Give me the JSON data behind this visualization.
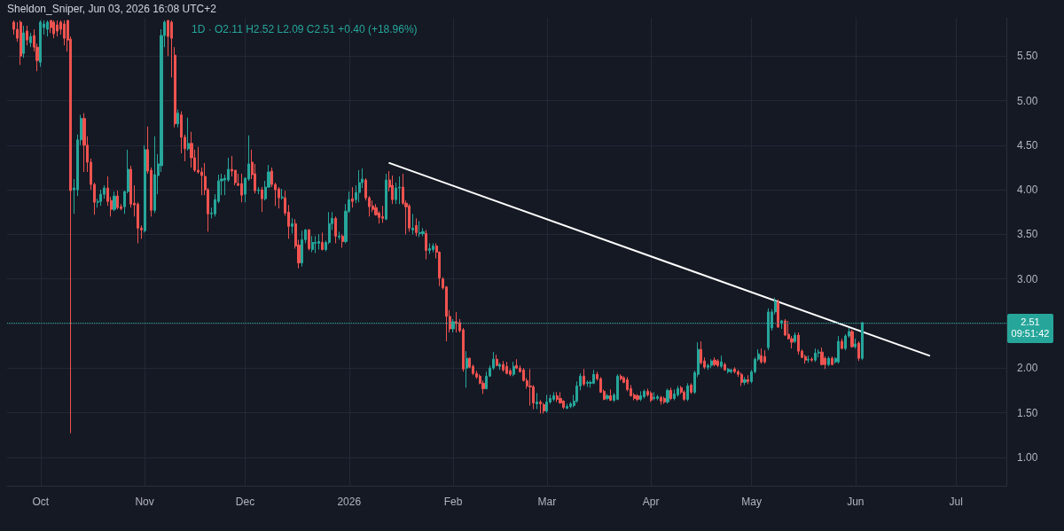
{
  "chart_data": {
    "type": "candlestick",
    "title": "1D · O2.11 H2.52 L2.09 C2.51 +0.40 (+18.96%)",
    "annotations": [
      "Sheldon_Sniper, Jun 03, 2026 16:08 UTC+2",
      "09:51:42"
    ],
    "x": [
      "2025-09-23",
      "2025-09-24",
      "2025-09-25",
      "2025-09-26",
      "2025-09-27",
      "2025-09-28",
      "2025-09-29",
      "2025-09-30",
      "2025-10-01",
      "2025-10-02",
      "2025-10-03",
      "2025-10-04",
      "2025-10-05",
      "2025-10-06",
      "2025-10-07",
      "2025-10-08",
      "2025-10-09",
      "2025-10-10",
      "2025-10-11",
      "2025-10-12",
      "2025-10-13",
      "2025-10-14",
      "2025-10-15",
      "2025-10-16",
      "2025-10-17",
      "2025-10-18",
      "2025-10-19",
      "2025-10-20",
      "2025-10-21",
      "2025-10-22",
      "2025-10-23",
      "2025-10-24",
      "2025-10-25",
      "2025-10-26",
      "2025-10-27",
      "2025-10-28",
      "2025-10-29",
      "2025-10-30",
      "2025-10-31",
      "2025-11-01",
      "2025-11-02",
      "2025-11-03",
      "2025-11-04",
      "2025-11-05",
      "2025-11-06",
      "2025-11-07",
      "2025-11-08",
      "2025-11-09",
      "2025-11-10",
      "2025-11-11",
      "2025-11-12",
      "2025-11-13",
      "2025-11-14",
      "2025-11-15",
      "2025-11-16",
      "2025-11-17",
      "2025-11-18",
      "2025-11-19",
      "2025-11-20",
      "2025-11-21",
      "2025-11-22",
      "2025-11-23",
      "2025-11-24",
      "2025-11-25",
      "2025-11-26",
      "2025-11-27",
      "2025-11-28",
      "2025-11-29",
      "2025-11-30",
      "2025-12-01",
      "2025-12-02",
      "2025-12-03",
      "2025-12-04",
      "2025-12-05",
      "2025-12-06",
      "2025-12-07",
      "2025-12-08",
      "2025-12-09",
      "2025-12-10",
      "2025-12-11",
      "2025-12-12",
      "2025-12-13",
      "2025-12-14",
      "2025-12-15",
      "2025-12-16",
      "2025-12-17",
      "2025-12-18",
      "2025-12-19",
      "2025-12-20",
      "2025-12-21",
      "2025-12-22",
      "2025-12-23",
      "2025-12-24",
      "2025-12-25",
      "2025-12-26",
      "2025-12-27",
      "2025-12-28",
      "2025-12-29",
      "2025-12-30",
      "2025-12-31",
      "2026-01-01",
      "2026-01-02",
      "2026-01-03",
      "2026-01-04",
      "2026-01-05",
      "2026-01-06",
      "2026-01-07",
      "2026-01-08",
      "2026-01-09",
      "2026-01-10",
      "2026-01-11",
      "2026-01-12",
      "2026-01-13",
      "2026-01-14",
      "2026-01-15",
      "2026-01-16",
      "2026-01-17",
      "2026-01-18",
      "2026-01-19",
      "2026-01-20",
      "2026-01-21",
      "2026-01-22",
      "2026-01-23",
      "2026-01-24",
      "2026-01-25",
      "2026-01-26",
      "2026-01-27",
      "2026-01-28",
      "2026-01-29",
      "2026-01-30",
      "2026-01-31",
      "2026-02-01",
      "2026-02-02",
      "2026-02-03",
      "2026-02-04",
      "2026-02-05",
      "2026-02-06",
      "2026-02-07",
      "2026-02-08",
      "2026-02-09",
      "2026-02-10",
      "2026-02-11",
      "2026-02-12",
      "2026-02-13",
      "2026-02-14",
      "2026-02-15",
      "2026-02-16",
      "2026-02-17",
      "2026-02-18",
      "2026-02-19",
      "2026-02-20",
      "2026-02-21",
      "2026-02-22",
      "2026-02-23",
      "2026-02-24",
      "2026-02-25",
      "2026-02-26",
      "2026-02-27",
      "2026-02-28",
      "2026-03-01",
      "2026-03-02",
      "2026-03-03",
      "2026-03-04",
      "2026-03-05",
      "2026-03-06",
      "2026-03-07",
      "2026-03-08",
      "2026-03-09",
      "2026-03-10",
      "2026-03-11",
      "2026-03-12",
      "2026-03-13",
      "2026-03-14",
      "2026-03-15",
      "2026-03-16",
      "2026-03-17",
      "2026-03-18",
      "2026-03-19",
      "2026-03-20",
      "2026-03-21",
      "2026-03-22",
      "2026-03-23",
      "2026-03-24",
      "2026-03-25",
      "2026-03-26",
      "2026-03-27",
      "2026-03-28",
      "2026-03-29",
      "2026-03-30",
      "2026-03-31",
      "2026-04-01",
      "2026-04-02",
      "2026-04-03",
      "2026-04-04",
      "2026-04-05",
      "2026-04-06",
      "2026-04-07",
      "2026-04-08",
      "2026-04-09",
      "2026-04-10",
      "2026-04-11",
      "2026-04-12",
      "2026-04-13",
      "2026-04-14",
      "2026-04-15",
      "2026-04-16",
      "2026-04-17",
      "2026-04-18",
      "2026-04-19",
      "2026-04-20",
      "2026-04-21",
      "2026-04-22",
      "2026-04-23",
      "2026-04-24",
      "2026-04-25",
      "2026-04-26",
      "2026-04-27",
      "2026-04-28",
      "2026-04-29",
      "2026-04-30",
      "2026-05-01",
      "2026-05-02",
      "2026-05-03",
      "2026-05-04",
      "2026-05-05",
      "2026-05-06",
      "2026-05-07",
      "2026-05-08",
      "2026-05-09",
      "2026-05-10",
      "2026-05-11",
      "2026-05-12",
      "2026-05-13",
      "2026-05-14",
      "2026-05-15",
      "2026-05-16",
      "2026-05-17",
      "2026-05-18",
      "2026-05-19",
      "2026-05-20",
      "2026-05-21",
      "2026-05-22",
      "2026-05-23",
      "2026-05-24",
      "2026-05-25",
      "2026-05-26",
      "2026-05-27",
      "2026-05-28",
      "2026-05-29",
      "2026-05-30",
      "2026-05-31",
      "2026-06-01",
      "2026-06-02",
      "2026-06-03"
    ],
    "ohlc": [
      [
        5.88,
        5.9,
        5.74,
        5.8
      ],
      [
        5.8,
        5.88,
        5.66,
        5.7
      ],
      [
        5.88,
        5.9,
        5.4,
        5.5
      ],
      [
        5.53,
        5.84,
        5.48,
        5.76
      ],
      [
        5.78,
        5.84,
        5.62,
        5.68
      ],
      [
        5.65,
        5.76,
        5.6,
        5.72
      ],
      [
        5.73,
        5.8,
        5.55,
        5.6
      ],
      [
        5.6,
        5.64,
        5.33,
        5.45
      ],
      [
        5.43,
        5.9,
        5.38,
        5.88
      ],
      [
        5.82,
        5.9,
        5.74,
        5.86
      ],
      [
        5.8,
        5.9,
        5.72,
        5.88
      ],
      [
        5.9,
        5.9,
        5.76,
        5.82
      ],
      [
        5.88,
        5.9,
        5.7,
        5.75
      ],
      [
        5.85,
        5.9,
        5.72,
        5.78
      ],
      [
        5.88,
        5.9,
        5.74,
        5.8
      ],
      [
        5.86,
        5.9,
        5.62,
        5.7
      ],
      [
        5.9,
        5.9,
        5.55,
        5.68
      ],
      [
        5.69,
        5.72,
        1.27,
        3.99
      ],
      [
        4.0,
        4.12,
        3.73,
        4.02
      ],
      [
        4.0,
        4.62,
        3.93,
        4.56
      ],
      [
        4.56,
        4.84,
        4.5,
        4.8
      ],
      [
        4.8,
        4.86,
        4.2,
        4.5
      ],
      [
        4.5,
        4.6,
        4.2,
        4.31
      ],
      [
        4.31,
        4.35,
        4.0,
        4.06
      ],
      [
        4.06,
        4.08,
        3.72,
        3.86
      ],
      [
        3.86,
        3.9,
        3.8,
        3.87
      ],
      [
        3.87,
        4.0,
        3.82,
        3.95
      ],
      [
        3.95,
        4.05,
        3.9,
        4.02
      ],
      [
        4.02,
        4.15,
        3.82,
        3.87
      ],
      [
        3.88,
        3.92,
        3.7,
        3.78
      ],
      [
        3.78,
        3.98,
        3.76,
        3.93
      ],
      [
        3.93,
        3.99,
        3.78,
        3.8
      ],
      [
        3.81,
        3.84,
        3.77,
        3.79
      ],
      [
        3.81,
        3.99,
        3.73,
        3.98
      ],
      [
        3.98,
        4.45,
        3.96,
        4.23
      ],
      [
        4.23,
        4.27,
        3.8,
        3.84
      ],
      [
        3.85,
        4.05,
        3.7,
        3.83
      ],
      [
        3.84,
        3.86,
        3.4,
        3.57
      ],
      [
        3.57,
        3.6,
        3.45,
        3.55
      ],
      [
        3.54,
        4.5,
        3.52,
        4.45
      ],
      [
        4.45,
        4.71,
        4.18,
        4.21
      ],
      [
        4.22,
        4.25,
        3.7,
        3.77
      ],
      [
        3.77,
        4.6,
        3.74,
        4.17
      ],
      [
        4.16,
        4.4,
        3.95,
        4.29
      ],
      [
        4.27,
        5.8,
        4.2,
        5.73
      ],
      [
        5.73,
        5.9,
        5.6,
        5.88
      ],
      [
        5.9,
        5.9,
        5.5,
        5.72
      ],
      [
        5.88,
        5.9,
        5.26,
        5.7
      ],
      [
        5.51,
        5.6,
        4.7,
        4.74
      ],
      [
        4.74,
        4.9,
        4.7,
        4.86
      ],
      [
        4.84,
        4.88,
        4.41,
        4.59
      ],
      [
        4.59,
        4.62,
        4.32,
        4.46
      ],
      [
        4.46,
        4.81,
        4.44,
        4.52
      ],
      [
        4.52,
        4.65,
        4.25,
        4.36
      ],
      [
        4.36,
        4.45,
        4.2,
        4.22
      ],
      [
        4.22,
        4.48,
        4.18,
        4.2
      ],
      [
        4.2,
        4.25,
        3.94,
        4.16
      ],
      [
        4.15,
        4.3,
        3.94,
        4.0
      ],
      [
        4.0,
        4.02,
        3.53,
        3.73
      ],
      [
        3.73,
        3.8,
        3.68,
        3.74
      ],
      [
        3.73,
        3.95,
        3.7,
        3.89
      ],
      [
        3.87,
        4.17,
        3.85,
        4.1
      ],
      [
        4.1,
        4.18,
        3.94,
        4.12
      ],
      [
        4.11,
        4.17,
        3.94,
        4.13
      ],
      [
        4.11,
        4.36,
        4.09,
        4.23
      ],
      [
        4.23,
        4.38,
        4.15,
        4.21
      ],
      [
        4.22,
        4.22,
        4.05,
        4.08
      ],
      [
        4.07,
        4.18,
        4.04,
        4.05
      ],
      [
        4.07,
        4.18,
        3.86,
        3.94
      ],
      [
        3.95,
        4.14,
        3.86,
        4.13
      ],
      [
        4.12,
        4.61,
        4.1,
        4.29
      ],
      [
        4.31,
        4.45,
        4.12,
        4.17
      ],
      [
        4.18,
        4.29,
        3.96,
        3.99
      ],
      [
        3.99,
        4.03,
        3.95,
        4.0
      ],
      [
        4.0,
        4.03,
        3.75,
        3.9
      ],
      [
        3.9,
        4.1,
        3.88,
        4.03
      ],
      [
        4.03,
        4.28,
        4.02,
        4.2
      ],
      [
        4.21,
        4.25,
        4.03,
        4.06
      ],
      [
        4.06,
        4.08,
        3.82,
        4.0
      ],
      [
        4.01,
        4.03,
        3.79,
        3.91
      ],
      [
        3.91,
        4.01,
        3.89,
        3.92
      ],
      [
        3.91,
        3.99,
        3.71,
        3.74
      ],
      [
        3.75,
        3.83,
        3.45,
        3.59
      ],
      [
        3.59,
        3.68,
        3.51,
        3.62
      ],
      [
        3.62,
        3.67,
        3.34,
        3.37
      ],
      [
        3.38,
        3.44,
        3.12,
        3.18
      ],
      [
        3.18,
        3.54,
        3.14,
        3.44
      ],
      [
        3.44,
        3.56,
        3.4,
        3.55
      ],
      [
        3.55,
        3.56,
        3.32,
        3.34
      ],
      [
        3.33,
        3.48,
        3.3,
        3.41
      ],
      [
        3.4,
        3.48,
        3.29,
        3.41
      ],
      [
        3.4,
        3.5,
        3.33,
        3.42
      ],
      [
        3.41,
        3.52,
        3.32,
        3.33
      ],
      [
        3.33,
        3.43,
        3.31,
        3.41
      ],
      [
        3.41,
        3.75,
        3.39,
        3.62
      ],
      [
        3.62,
        3.75,
        3.55,
        3.68
      ],
      [
        3.68,
        3.7,
        3.4,
        3.48
      ],
      [
        3.47,
        3.53,
        3.44,
        3.48
      ],
      [
        3.48,
        3.5,
        3.35,
        3.42
      ],
      [
        3.42,
        3.84,
        3.4,
        3.76
      ],
      [
        3.76,
        3.98,
        3.74,
        3.89
      ],
      [
        3.9,
        4.03,
        3.8,
        3.87
      ],
      [
        3.89,
        4.05,
        3.85,
        3.97
      ],
      [
        3.97,
        4.22,
        3.86,
        4.08
      ],
      [
        4.08,
        4.24,
        4.02,
        4.12
      ],
      [
        4.11,
        4.13,
        3.88,
        3.91
      ],
      [
        3.91,
        3.93,
        3.7,
        3.81
      ],
      [
        3.82,
        3.88,
        3.75,
        3.78
      ],
      [
        3.8,
        3.84,
        3.71,
        3.72
      ],
      [
        3.74,
        3.76,
        3.62,
        3.69
      ],
      [
        3.7,
        3.82,
        3.63,
        3.68
      ],
      [
        3.67,
        4.18,
        3.66,
        4.11
      ],
      [
        4.11,
        4.21,
        3.98,
        4.03
      ],
      [
        4.05,
        4.16,
        3.84,
        3.89
      ],
      [
        3.89,
        4.08,
        3.84,
        4.02
      ],
      [
        4.02,
        4.15,
        3.84,
        4.03
      ],
      [
        4.03,
        4.18,
        3.83,
        3.85
      ],
      [
        3.85,
        3.88,
        3.5,
        3.81
      ],
      [
        3.82,
        3.84,
        3.53,
        3.57
      ],
      [
        3.55,
        3.73,
        3.5,
        3.57
      ],
      [
        3.6,
        3.68,
        3.48,
        3.52
      ],
      [
        3.51,
        3.65,
        3.47,
        3.52
      ],
      [
        3.51,
        3.57,
        3.48,
        3.53
      ],
      [
        3.51,
        3.55,
        3.22,
        3.32
      ],
      [
        3.32,
        3.4,
        3.28,
        3.34
      ],
      [
        3.33,
        3.4,
        3.3,
        3.37
      ],
      [
        3.37,
        3.4,
        3.23,
        3.3
      ],
      [
        3.3,
        3.31,
        2.92,
        3.01
      ],
      [
        3.0,
        3.02,
        2.88,
        2.9
      ],
      [
        2.91,
        2.92,
        2.3,
        2.58
      ],
      [
        2.58,
        2.65,
        2.4,
        2.44
      ],
      [
        2.44,
        2.55,
        2.4,
        2.52
      ],
      [
        2.52,
        2.63,
        2.4,
        2.5
      ],
      [
        2.51,
        2.55,
        2.4,
        2.42
      ],
      [
        2.43,
        2.45,
        1.96,
        1.99
      ],
      [
        2.0,
        2.19,
        1.78,
        2.11
      ],
      [
        2.11,
        2.12,
        2.0,
        2.01
      ],
      [
        2.02,
        2.04,
        1.92,
        1.94
      ],
      [
        1.94,
        1.97,
        1.88,
        1.9
      ],
      [
        1.91,
        1.93,
        1.82,
        1.83
      ],
      [
        1.83,
        1.86,
        1.71,
        1.77
      ],
      [
        1.77,
        1.96,
        1.76,
        1.91
      ],
      [
        1.91,
        2.03,
        1.9,
        2.0
      ],
      [
        2.0,
        2.18,
        1.98,
        2.1
      ],
      [
        2.1,
        2.15,
        2.02,
        2.03
      ],
      [
        2.02,
        2.06,
        1.98,
        2.04
      ],
      [
        2.04,
        2.08,
        1.96,
        1.98
      ],
      [
        2.02,
        2.07,
        1.93,
        1.94
      ],
      [
        1.97,
        1.99,
        1.91,
        1.93
      ],
      [
        1.93,
        2.07,
        1.91,
        2.02
      ],
      [
        2.03,
        2.1,
        1.99,
        2.0
      ],
      [
        2.0,
        2.03,
        1.95,
        1.96
      ],
      [
        1.98,
        2.0,
        1.85,
        1.86
      ],
      [
        1.86,
        1.89,
        1.77,
        1.8
      ],
      [
        1.8,
        1.99,
        1.58,
        1.79
      ],
      [
        1.79,
        1.81,
        1.54,
        1.61
      ],
      [
        1.6,
        1.72,
        1.54,
        1.62
      ],
      [
        1.62,
        1.64,
        1.49,
        1.6
      ],
      [
        1.59,
        1.61,
        1.49,
        1.52
      ],
      [
        1.52,
        1.7,
        1.5,
        1.62
      ],
      [
        1.62,
        1.7,
        1.6,
        1.66
      ],
      [
        1.65,
        1.73,
        1.63,
        1.69
      ],
      [
        1.69,
        1.73,
        1.62,
        1.65
      ],
      [
        1.66,
        1.73,
        1.6,
        1.61
      ],
      [
        1.63,
        1.64,
        1.54,
        1.56
      ],
      [
        1.55,
        1.6,
        1.54,
        1.57
      ],
      [
        1.57,
        1.62,
        1.55,
        1.6
      ],
      [
        1.58,
        1.7,
        1.56,
        1.63
      ],
      [
        1.63,
        1.85,
        1.61,
        1.8
      ],
      [
        1.8,
        1.94,
        1.75,
        1.91
      ],
      [
        1.91,
        1.99,
        1.8,
        1.82
      ],
      [
        1.83,
        1.86,
        1.79,
        1.84
      ],
      [
        1.83,
        1.86,
        1.78,
        1.84
      ],
      [
        1.83,
        1.98,
        1.82,
        1.93
      ],
      [
        1.93,
        1.96,
        1.86,
        1.88
      ],
      [
        1.88,
        1.9,
        1.72,
        1.73
      ],
      [
        1.74,
        1.76,
        1.64,
        1.65
      ],
      [
        1.66,
        1.71,
        1.64,
        1.69
      ],
      [
        1.69,
        1.76,
        1.63,
        1.64
      ],
      [
        1.64,
        1.72,
        1.62,
        1.7
      ],
      [
        1.65,
        1.93,
        1.64,
        1.91
      ],
      [
        1.91,
        1.93,
        1.86,
        1.88
      ],
      [
        1.89,
        1.91,
        1.83,
        1.84
      ],
      [
        1.87,
        1.9,
        1.74,
        1.76
      ],
      [
        1.77,
        1.81,
        1.68,
        1.69
      ],
      [
        1.7,
        1.72,
        1.64,
        1.66
      ],
      [
        1.69,
        1.71,
        1.63,
        1.65
      ],
      [
        1.65,
        1.74,
        1.63,
        1.69
      ],
      [
        1.68,
        1.76,
        1.66,
        1.74
      ],
      [
        1.74,
        1.77,
        1.68,
        1.7
      ],
      [
        1.72,
        1.74,
        1.62,
        1.64
      ],
      [
        1.66,
        1.73,
        1.64,
        1.67
      ],
      [
        1.66,
        1.7,
        1.64,
        1.68
      ],
      [
        1.67,
        1.69,
        1.59,
        1.63
      ],
      [
        1.66,
        1.68,
        1.6,
        1.62
      ],
      [
        1.62,
        1.77,
        1.6,
        1.75
      ],
      [
        1.75,
        1.78,
        1.64,
        1.66
      ],
      [
        1.66,
        1.76,
        1.64,
        1.71
      ],
      [
        1.7,
        1.8,
        1.68,
        1.77
      ],
      [
        1.78,
        1.8,
        1.71,
        1.73
      ],
      [
        1.73,
        1.75,
        1.63,
        1.65
      ],
      [
        1.65,
        1.83,
        1.63,
        1.8
      ],
      [
        1.81,
        1.83,
        1.71,
        1.73
      ],
      [
        1.73,
        1.97,
        1.71,
        1.95
      ],
      [
        1.93,
        2.29,
        1.9,
        2.21
      ],
      [
        2.21,
        2.3,
        2.04,
        2.06
      ],
      [
        2.08,
        2.12,
        1.99,
        2.01
      ],
      [
        2.01,
        2.05,
        1.98,
        2.03
      ],
      [
        2.03,
        2.1,
        2.0,
        2.08
      ],
      [
        2.09,
        2.12,
        2.02,
        2.04
      ],
      [
        2.08,
        2.1,
        2.01,
        2.03
      ],
      [
        2.02,
        2.14,
        2.0,
        2.07
      ],
      [
        2.04,
        2.06,
        1.97,
        1.98
      ],
      [
        1.96,
        2.0,
        1.94,
        1.99
      ],
      [
        1.96,
        1.99,
        1.94,
        1.98
      ],
      [
        1.99,
        2.01,
        1.94,
        1.96
      ],
      [
        1.96,
        1.98,
        1.9,
        1.93
      ],
      [
        1.93,
        1.95,
        1.8,
        1.84
      ],
      [
        1.84,
        1.9,
        1.81,
        1.87
      ],
      [
        1.87,
        1.92,
        1.82,
        1.85
      ],
      [
        1.85,
        1.98,
        1.83,
        1.96
      ],
      [
        1.96,
        2.12,
        1.94,
        2.1
      ],
      [
        2.1,
        2.21,
        2.08,
        2.16
      ],
      [
        2.14,
        2.22,
        2.05,
        2.07
      ],
      [
        2.13,
        2.2,
        2.05,
        2.07
      ],
      [
        2.23,
        2.67,
        2.2,
        2.63
      ],
      [
        2.45,
        2.66,
        2.42,
        2.63
      ],
      [
        2.63,
        2.79,
        2.6,
        2.75
      ],
      [
        2.74,
        2.77,
        2.45,
        2.46
      ],
      [
        2.51,
        2.54,
        2.44,
        2.53
      ],
      [
        2.53,
        2.55,
        2.36,
        2.37
      ],
      [
        2.38,
        2.53,
        2.32,
        2.33
      ],
      [
        2.33,
        2.36,
        2.22,
        2.29
      ],
      [
        2.3,
        2.4,
        2.28,
        2.37
      ],
      [
        2.37,
        2.4,
        2.15,
        2.19
      ],
      [
        2.19,
        2.21,
        2.11,
        2.12
      ],
      [
        2.13,
        2.15,
        2.05,
        2.09
      ],
      [
        2.09,
        2.14,
        2.06,
        2.1
      ],
      [
        2.1,
        2.12,
        2.07,
        2.09
      ],
      [
        2.09,
        2.22,
        2.07,
        2.17
      ],
      [
        2.17,
        2.21,
        2.12,
        2.18
      ],
      [
        2.18,
        2.23,
        2.03,
        2.04
      ],
      [
        2.11,
        2.13,
        1.99,
        2.04
      ],
      [
        2.04,
        2.13,
        2.02,
        2.11
      ],
      [
        2.11,
        2.13,
        2.03,
        2.04
      ],
      [
        2.07,
        2.12,
        2.05,
        2.11
      ],
      [
        2.07,
        2.36,
        2.05,
        2.3
      ],
      [
        2.3,
        2.33,
        2.21,
        2.22
      ],
      [
        2.22,
        2.38,
        2.2,
        2.36
      ],
      [
        2.36,
        2.45,
        2.34,
        2.41
      ],
      [
        2.41,
        2.43,
        2.23,
        2.24
      ],
      [
        2.24,
        2.33,
        2.22,
        2.27
      ],
      [
        2.28,
        2.3,
        2.08,
        2.11
      ],
      [
        2.11,
        2.52,
        2.09,
        2.51
      ]
    ],
    "series": [
      {
        "type": "line",
        "color": "#ffffff",
        "x": [
          "2026-01-13",
          "2026-06-23"
        ],
        "values": [
          4.3,
          2.14
        ]
      }
    ],
    "xlim": [
      "2025-09-21",
      "2026-07-16"
    ],
    "xticks": [
      {
        "value": "2025-10-01",
        "label": "Oct"
      },
      {
        "value": "2025-11-01",
        "label": "Nov"
      },
      {
        "value": "2025-12-01",
        "label": "Dec"
      },
      {
        "value": "2026-01-01",
        "label": "2026"
      },
      {
        "value": "2026-02-01",
        "label": "Feb"
      },
      {
        "value": "2026-03-01",
        "label": "Mar"
      },
      {
        "value": "2026-04-01",
        "label": "Apr"
      },
      {
        "value": "2026-05-01",
        "label": "May"
      },
      {
        "value": "2026-06-01",
        "label": "Jun"
      },
      {
        "value": "2026-07-01",
        "label": "Jul"
      }
    ],
    "ylim": [
      0.68,
      5.93
    ],
    "yticks": [
      {
        "value": 1,
        "label": "1.00"
      },
      {
        "value": 1.5,
        "label": "1.50"
      },
      {
        "value": 2,
        "label": "2.00"
      },
      {
        "value": 2.5,
        "label": null
      },
      {
        "value": 3,
        "label": "3.00"
      },
      {
        "value": 3.5,
        "label": "3.50"
      },
      {
        "value": 4,
        "label": "4.00"
      },
      {
        "value": 4.5,
        "label": "4.50"
      },
      {
        "value": 5,
        "label": "5.00"
      },
      {
        "value": 5.5,
        "label": "5.50"
      }
    ],
    "ref_lines": [
      {
        "axis": "y",
        "value": 2.51,
        "label": "2.51",
        "color": "#26a69a",
        "line_style": "dotted"
      }
    ],
    "grid": true
  }
}
